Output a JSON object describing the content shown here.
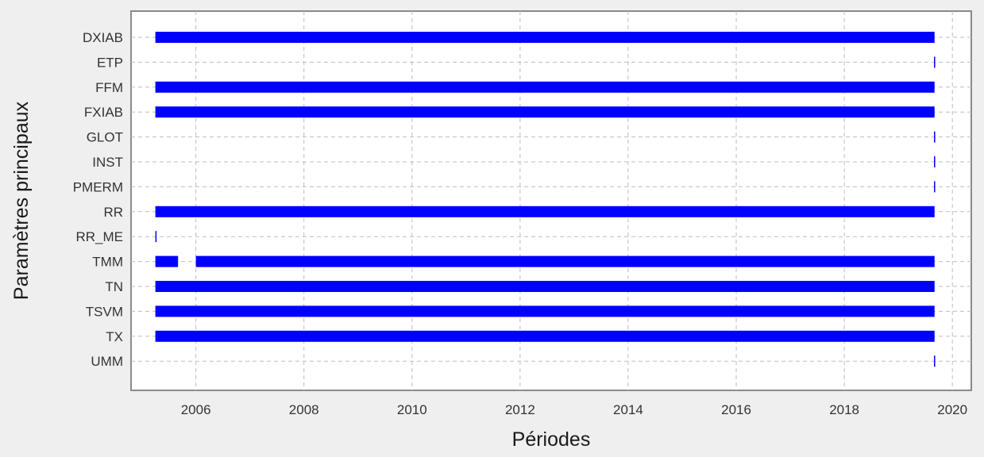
{
  "chart_data": {
    "type": "timeline",
    "xlabel": "Périodes",
    "ylabel": "Paramètres principaux",
    "xlim": [
      2004.8,
      2020.35
    ],
    "xticks": [
      2006,
      2008,
      2010,
      2012,
      2014,
      2016,
      2018,
      2020
    ],
    "categories": [
      "DXIAB",
      "ETP",
      "FFM",
      "FXIAB",
      "GLOT",
      "INST",
      "PMERM",
      "RR",
      "RR_ME",
      "TMM",
      "TN",
      "TSVM",
      "TX",
      "UMM"
    ],
    "series": [
      {
        "category": "DXIAB",
        "segments": [
          [
            2005.25,
            2019.67
          ]
        ]
      },
      {
        "category": "ETP",
        "segments": [
          [
            2019.66,
            2019.67
          ]
        ]
      },
      {
        "category": "FFM",
        "segments": [
          [
            2005.25,
            2019.67
          ]
        ]
      },
      {
        "category": "FXIAB",
        "segments": [
          [
            2005.25,
            2019.67
          ]
        ]
      },
      {
        "category": "GLOT",
        "segments": [
          [
            2019.66,
            2019.67
          ]
        ]
      },
      {
        "category": "INST",
        "segments": [
          [
            2019.66,
            2019.67
          ]
        ]
      },
      {
        "category": "PMERM",
        "segments": [
          [
            2019.66,
            2019.67
          ]
        ]
      },
      {
        "category": "RR",
        "segments": [
          [
            2005.25,
            2019.67
          ]
        ]
      },
      {
        "category": "RR_ME",
        "segments": [
          [
            2005.25,
            2005.26
          ]
        ]
      },
      {
        "category": "TMM",
        "segments": [
          [
            2005.25,
            2005.67
          ],
          [
            2006.0,
            2019.67
          ]
        ]
      },
      {
        "category": "TN",
        "segments": [
          [
            2005.25,
            2019.67
          ]
        ]
      },
      {
        "category": "TSVM",
        "segments": [
          [
            2005.25,
            2019.67
          ]
        ]
      },
      {
        "category": "TX",
        "segments": [
          [
            2005.25,
            2019.67
          ]
        ]
      },
      {
        "category": "UMM",
        "segments": [
          [
            2019.66,
            2019.67
          ]
        ]
      }
    ],
    "grid": true,
    "colors": {
      "bar": "#0000ff",
      "grid": "#bdbdbd",
      "axis": "#8a8a8a",
      "plot_background": "#ffffff",
      "figure_background": "#efefef"
    }
  }
}
